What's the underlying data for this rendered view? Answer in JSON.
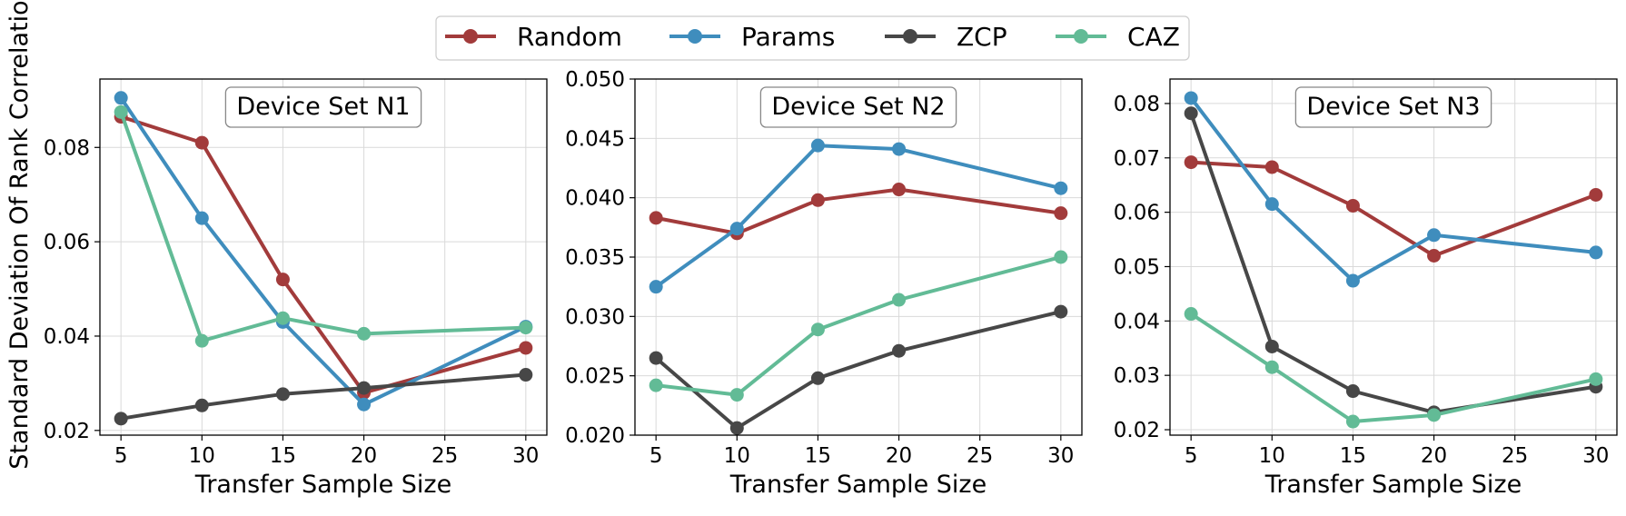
{
  "figure": {
    "shared_ylabel": "Standard Deviation Of Rank Correlation"
  },
  "legend": {
    "placement": "top-center",
    "entries": [
      {
        "name": "Random",
        "color": "#a23b3b"
      },
      {
        "name": "Params",
        "color": "#3f8dbd"
      },
      {
        "name": "ZCP",
        "color": "#474747"
      },
      {
        "name": "CAZ",
        "color": "#62bb96"
      }
    ]
  },
  "chart_data": [
    {
      "type": "line",
      "title": "Device Set N1",
      "xlabel": "Transfer Sample Size",
      "ylabel": "Standard Deviation Of Rank Correlation",
      "x": [
        5,
        10,
        15,
        20,
        30
      ],
      "xticks": [
        5,
        10,
        15,
        20,
        25,
        30
      ],
      "xlim": [
        3.7,
        31.3
      ],
      "ylim": [
        0.019,
        0.0945
      ],
      "yticks": [
        0.02,
        0.04,
        0.06,
        0.08
      ],
      "ytick_labels": [
        "0.02",
        "0.04",
        "0.06",
        "0.08"
      ],
      "grid": true,
      "series": [
        {
          "name": "Random",
          "color": "#a23b3b",
          "values": [
            0.0865,
            0.081,
            0.052,
            0.028,
            0.0375
          ]
        },
        {
          "name": "Params",
          "color": "#3f8dbd",
          "values": [
            0.0905,
            0.065,
            0.043,
            0.0255,
            0.042
          ]
        },
        {
          "name": "ZCP",
          "color": "#474747",
          "values": [
            0.0225,
            0.0253,
            0.0277,
            0.029,
            0.0318
          ]
        },
        {
          "name": "CAZ",
          "color": "#62bb96",
          "values": [
            0.0875,
            0.039,
            0.0438,
            0.0405,
            0.0418
          ]
        }
      ]
    },
    {
      "type": "line",
      "title": "Device Set N2",
      "xlabel": "Transfer Sample Size",
      "x": [
        5,
        10,
        15,
        20,
        30
      ],
      "xticks": [
        5,
        10,
        15,
        20,
        25,
        30
      ],
      "xlim": [
        3.7,
        31.3
      ],
      "ylim": [
        0.02,
        0.05
      ],
      "yticks": [
        0.02,
        0.025,
        0.03,
        0.035,
        0.04,
        0.045,
        0.05
      ],
      "ytick_labels": [
        "0.020",
        "0.025",
        "0.030",
        "0.035",
        "0.040",
        "0.045",
        "0.050"
      ],
      "grid": true,
      "series": [
        {
          "name": "Random",
          "color": "#a23b3b",
          "values": [
            0.0383,
            0.037,
            0.0398,
            0.0407,
            0.0387
          ]
        },
        {
          "name": "Params",
          "color": "#3f8dbd",
          "values": [
            0.0325,
            0.0374,
            0.0444,
            0.0441,
            0.0408
          ]
        },
        {
          "name": "ZCP",
          "color": "#474747",
          "values": [
            0.0265,
            0.0206,
            0.0248,
            0.0271,
            0.0304
          ]
        },
        {
          "name": "CAZ",
          "color": "#62bb96",
          "values": [
            0.0242,
            0.0234,
            0.0289,
            0.0314,
            0.035
          ]
        }
      ]
    },
    {
      "type": "line",
      "title": "Device Set N3",
      "xlabel": "Transfer Sample Size",
      "x": [
        5,
        10,
        15,
        20,
        30
      ],
      "xticks": [
        5,
        10,
        15,
        20,
        25,
        30
      ],
      "xlim": [
        3.7,
        31.3
      ],
      "ylim": [
        0.019,
        0.0845
      ],
      "yticks": [
        0.02,
        0.03,
        0.04,
        0.05,
        0.06,
        0.07,
        0.08
      ],
      "ytick_labels": [
        "0.02",
        "0.03",
        "0.04",
        "0.05",
        "0.06",
        "0.07",
        "0.08"
      ],
      "grid": true,
      "series": [
        {
          "name": "Random",
          "color": "#a23b3b",
          "values": [
            0.0692,
            0.0683,
            0.0612,
            0.052,
            0.0632
          ]
        },
        {
          "name": "Params",
          "color": "#3f8dbd",
          "values": [
            0.081,
            0.0615,
            0.0474,
            0.0558,
            0.0526
          ]
        },
        {
          "name": "ZCP",
          "color": "#474747",
          "values": [
            0.0782,
            0.0353,
            0.0271,
            0.0232,
            0.0279
          ]
        },
        {
          "name": "CAZ",
          "color": "#62bb96",
          "values": [
            0.0413,
            0.0315,
            0.0215,
            0.0227,
            0.0293
          ]
        }
      ]
    }
  ]
}
